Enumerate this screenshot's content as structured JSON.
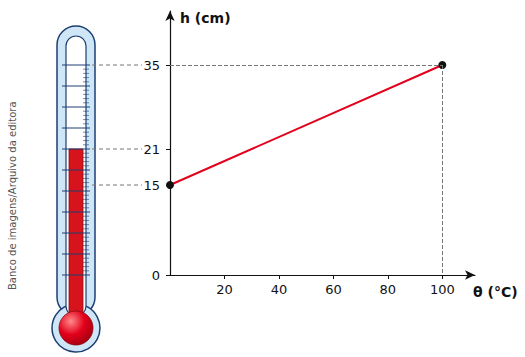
{
  "chart_data": {
    "type": "line",
    "x_label": "θ (°C)",
    "y_label": "h (cm)",
    "x": [
      0,
      100
    ],
    "values": [
      15,
      35
    ],
    "color": "#e3001b",
    "marker": "circle",
    "xlim": [
      0,
      112
    ],
    "xticks": [
      20,
      40,
      60,
      80,
      100
    ],
    "ylim": [
      0,
      44
    ],
    "yticks": [
      0,
      15,
      21,
      35
    ],
    "grid": false,
    "annotations": [
      "Banco de imagens/Arquivo da editora"
    ]
  }
}
